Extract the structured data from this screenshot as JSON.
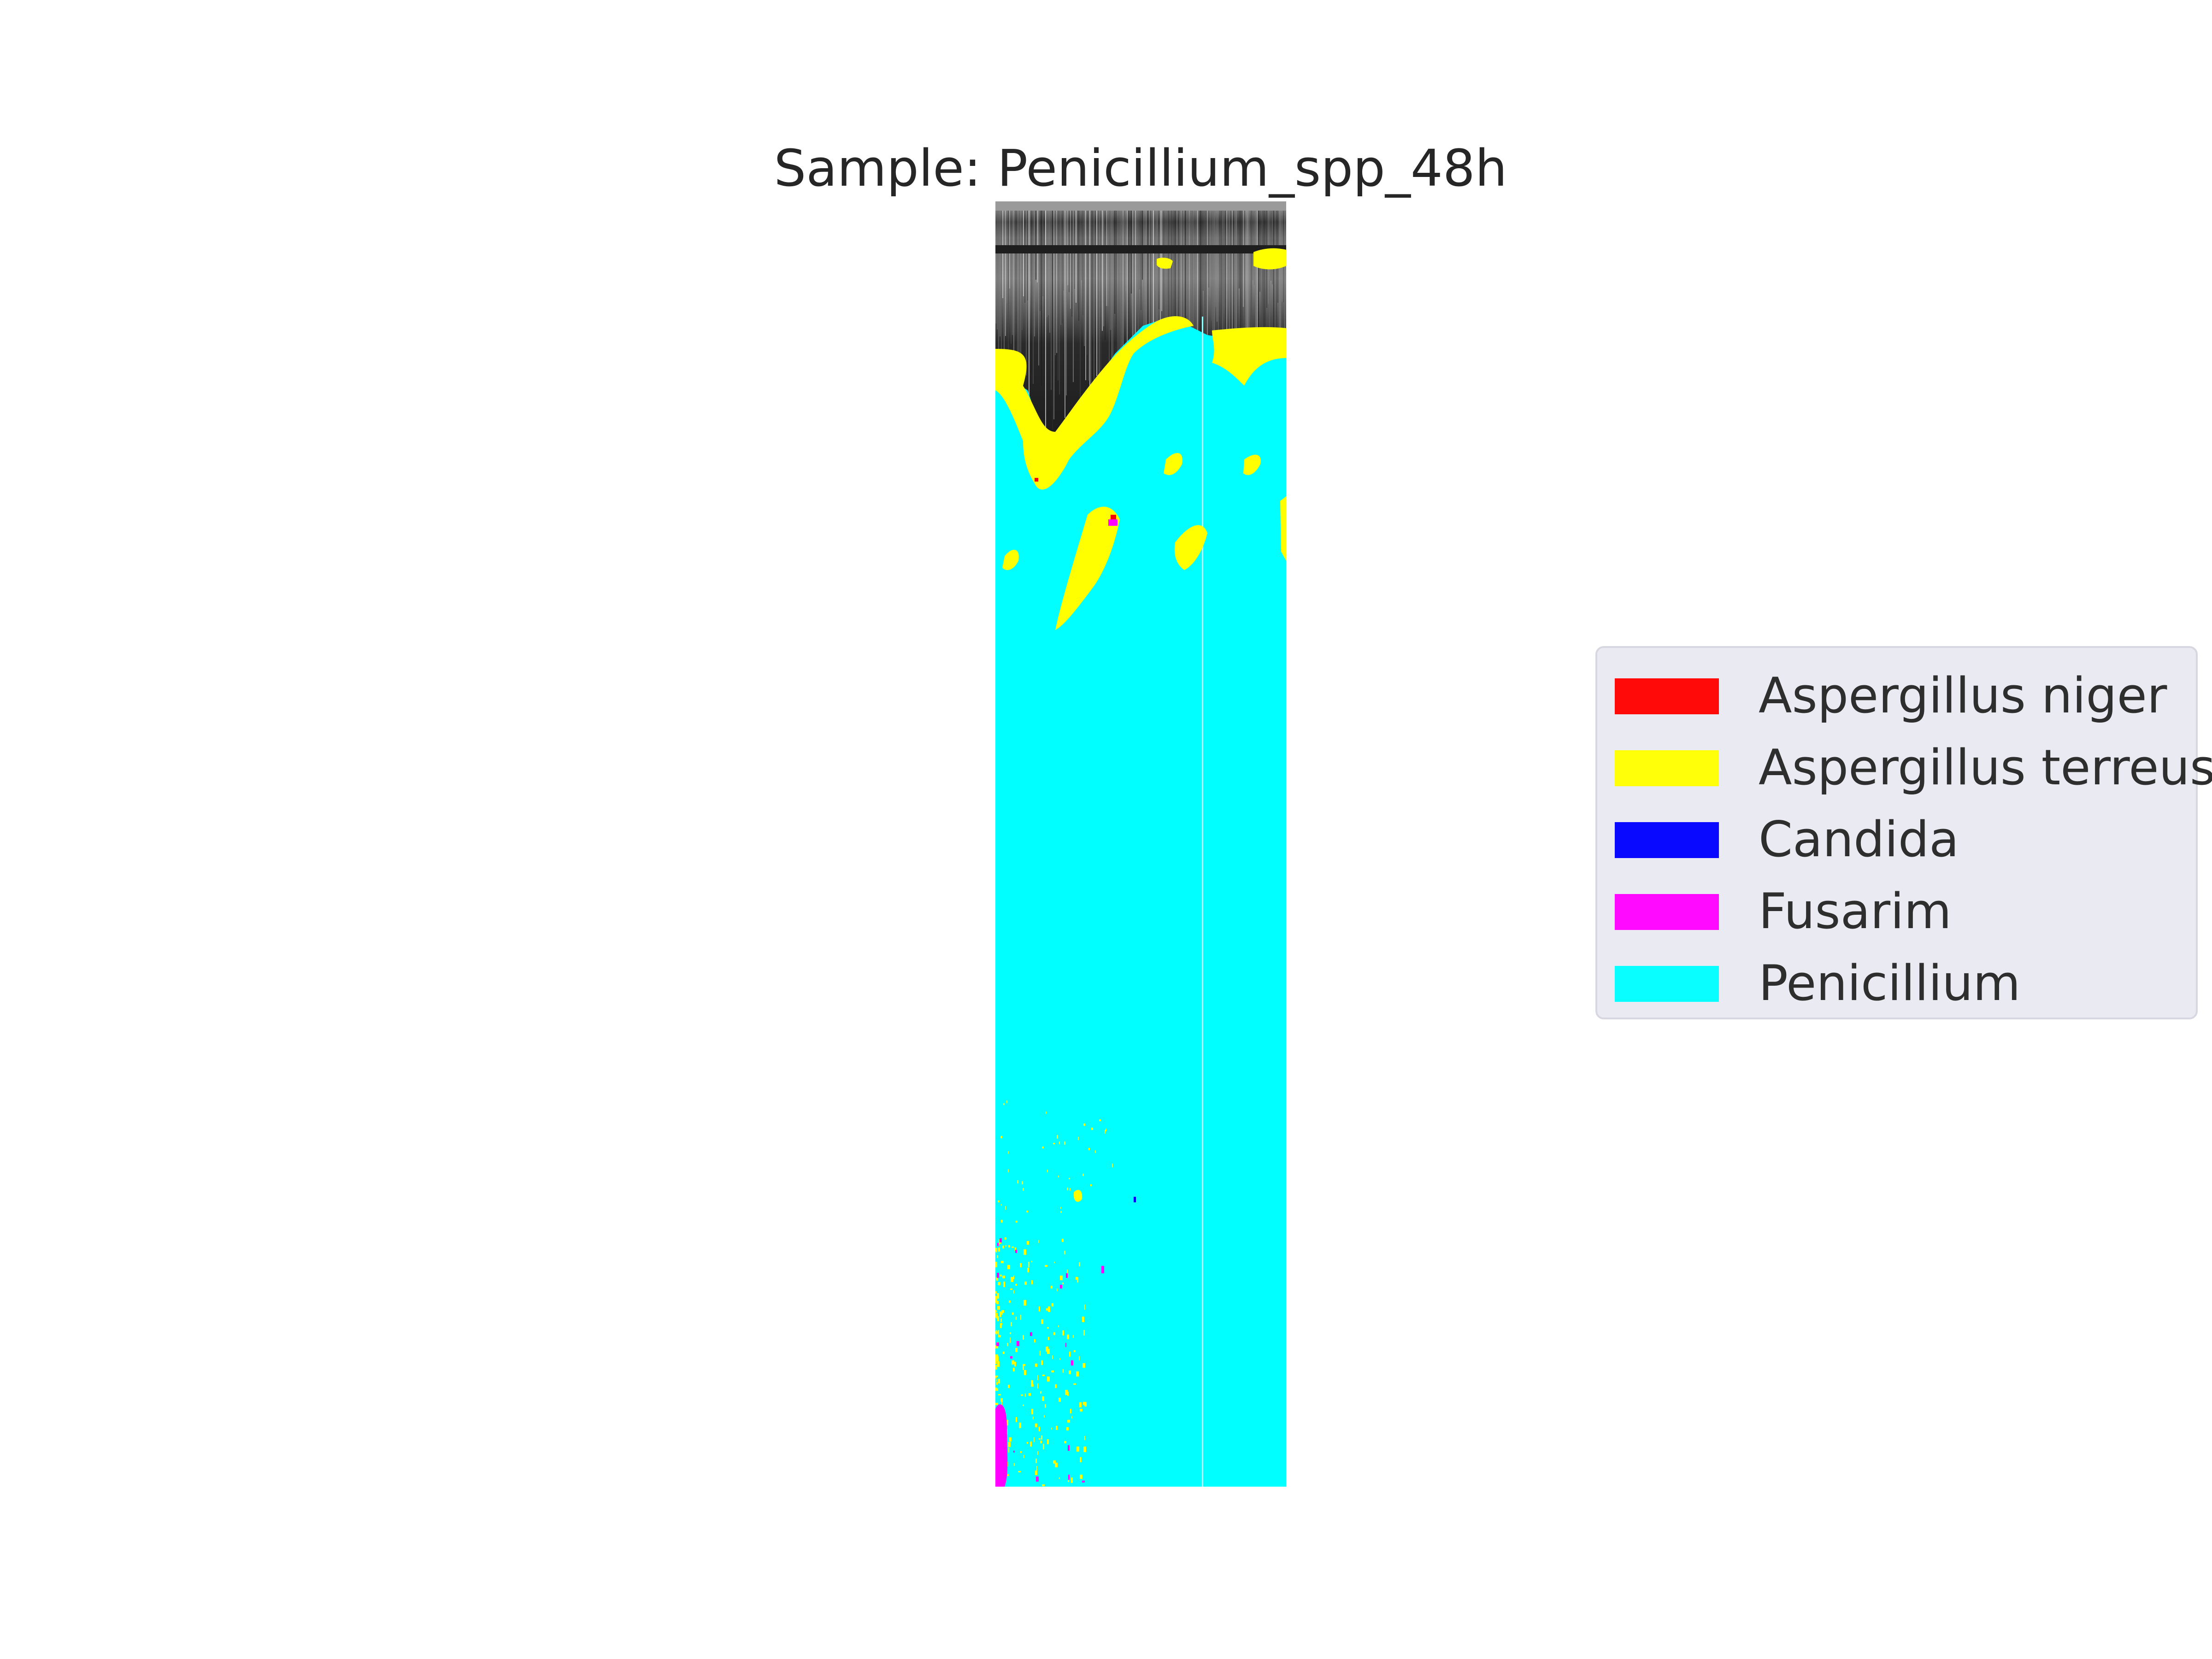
{
  "chart_data": {
    "type": "heatmap",
    "title": "Sample: Penicillium_spp_48h",
    "axes_visible": false,
    "grid": false,
    "legend_placement": "center-right",
    "background_colormap": "grayscale",
    "classes": [
      {
        "name": "Aspergillus niger",
        "color": "#ff0000"
      },
      {
        "name": "Aspergillus terreus",
        "color": "#ffff00"
      },
      {
        "name": "Candida",
        "color": "#0000ff"
      },
      {
        "name": "Fusarim",
        "color": "#ff00ff"
      },
      {
        "name": "Penicillium",
        "color": "#00ffff"
      }
    ]
  }
}
